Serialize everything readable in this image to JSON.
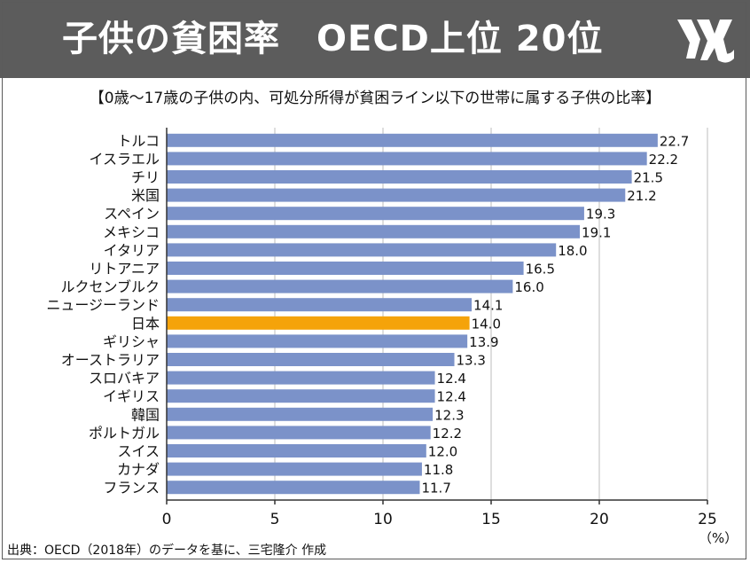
{
  "header": {
    "title": "子供の貧困率　OECD上位 20位",
    "subtitle": "【0歳～17歳の子供の内、可処分所得が貧困ライン以下の世帯に属する子供の比率】"
  },
  "footer": {
    "source": "出典：OECD（2018年）のデータを基に、三宅隆介 作成",
    "unit": "（%）"
  },
  "colors": {
    "header_bg": "#5c5c5c",
    "bar": "#7b92c9",
    "highlight_bar": "#f5a30a"
  },
  "chart_data": {
    "type": "bar",
    "orientation": "horizontal",
    "categories": [
      "トルコ",
      "イスラエル",
      "チリ",
      "米国",
      "スペイン",
      "メキシコ",
      "イタリア",
      "リトアニア",
      "ルクセンブルク",
      "ニュージーランド",
      "日本",
      "ギリシャ",
      "オーストラリア",
      "スロバキア",
      "イギリス",
      "韓国",
      "ポルトガル",
      "スイス",
      "カナダ",
      "フランス"
    ],
    "values": [
      22.7,
      22.2,
      21.5,
      21.2,
      19.3,
      19.1,
      18.0,
      16.5,
      16.0,
      14.1,
      14.0,
      13.9,
      13.3,
      12.4,
      12.4,
      12.3,
      12.2,
      12.0,
      11.8,
      11.7
    ],
    "value_labels": [
      "22.7",
      "22.2",
      "21.5",
      "21.2",
      "19.3",
      "19.1",
      "18.0",
      "16.5",
      "16.0",
      "14.1",
      "14.0",
      "13.9",
      "13.3",
      "12.4",
      "12.4",
      "12.3",
      "12.2",
      "12.0",
      "11.8",
      "11.7"
    ],
    "highlight": "日本",
    "xlim": [
      0,
      25
    ],
    "xticks": [
      "0",
      "5",
      "10",
      "15",
      "20",
      "25"
    ],
    "grid": true
  }
}
